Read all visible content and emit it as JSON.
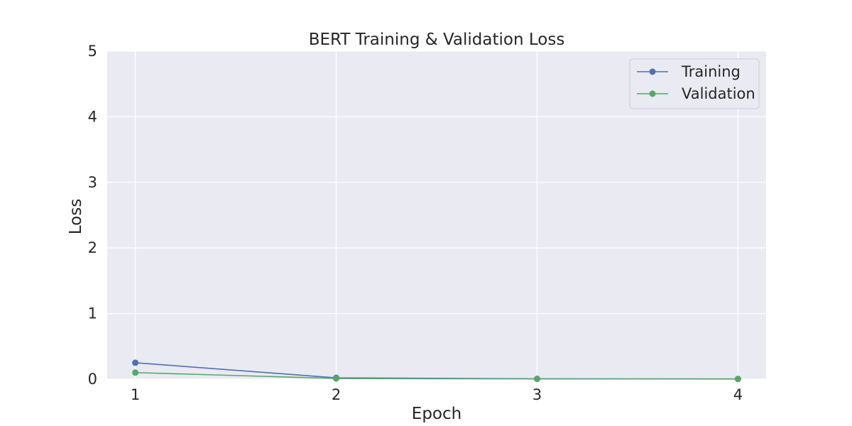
{
  "colors": {
    "plot_background": "#eaeaf2",
    "grid": "#ffffff",
    "training": "#4c72b0",
    "validation": "#55a868",
    "legend_background": "#eaeaf2",
    "legend_border": "#cccccc"
  },
  "chart_data": {
    "type": "line",
    "title": "BERT Training & Validation Loss",
    "xlabel": "Epoch",
    "ylabel": "Loss",
    "x": [
      1,
      2,
      3,
      4
    ],
    "xticks": [
      "1",
      "2",
      "3",
      "4"
    ],
    "xlim": [
      0.86,
      4.14
    ],
    "yticks": [
      "0",
      "1",
      "2",
      "3",
      "4",
      "5"
    ],
    "ylim": [
      0,
      5
    ],
    "grid": true,
    "legend_position": "top-right",
    "series": [
      {
        "name": "Training",
        "values": [
          0.25,
          0.02,
          0.005,
          0.003
        ],
        "marker": "circle"
      },
      {
        "name": "Validation",
        "values": [
          0.1,
          0.01,
          0.004,
          0.002
        ],
        "marker": "circle"
      }
    ]
  }
}
